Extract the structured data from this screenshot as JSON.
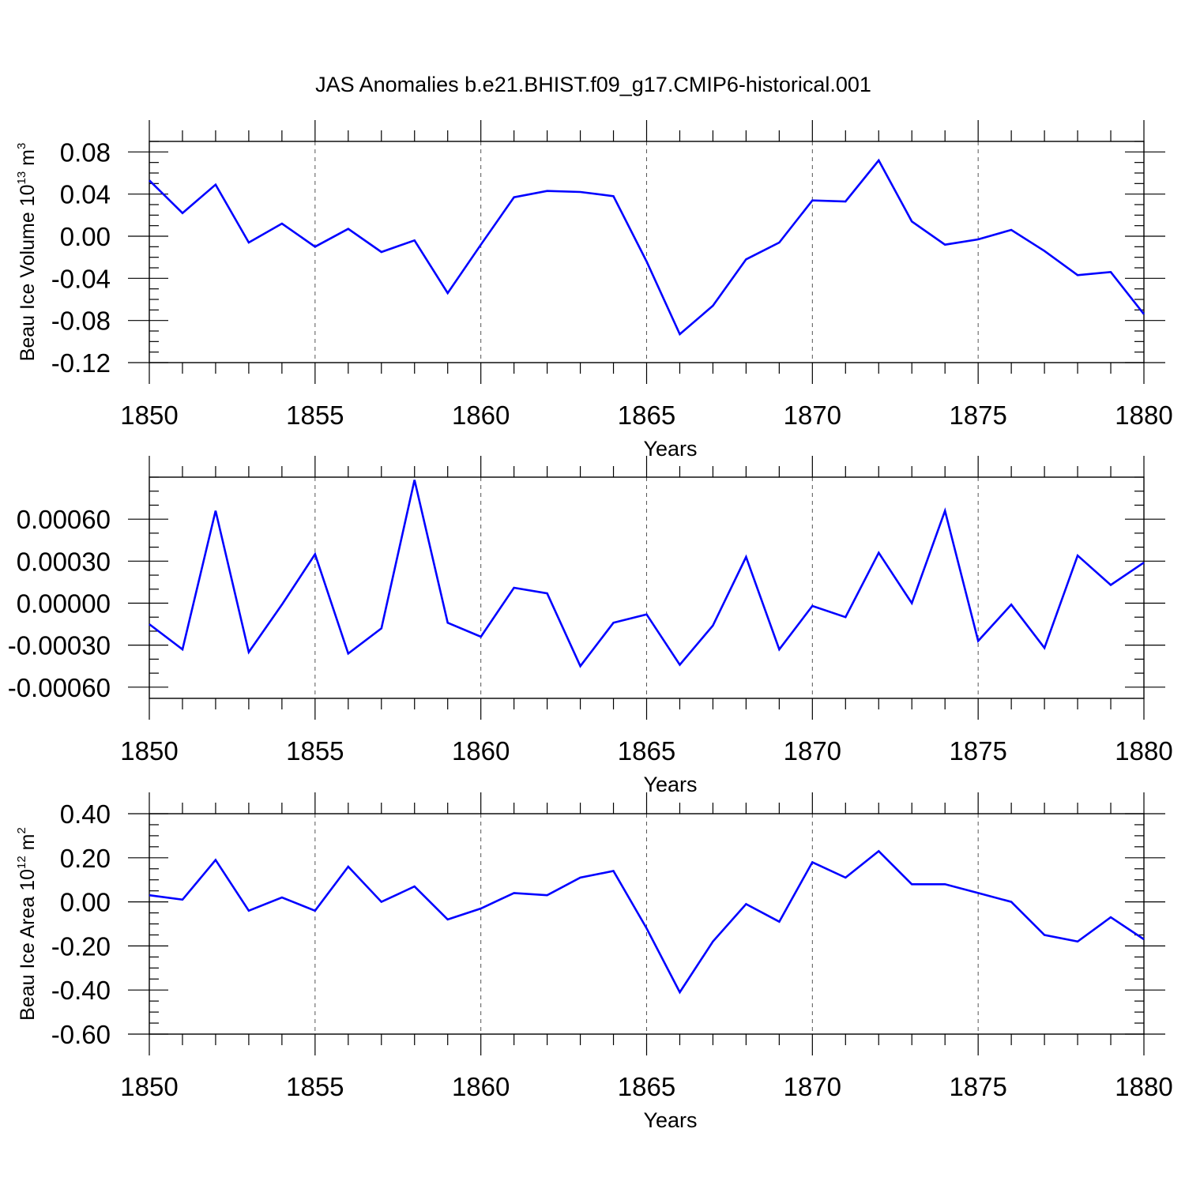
{
  "figure": {
    "title": "JAS Anomalies b.e21.BHIST.f09_g17.CMIP6-historical.001"
  },
  "chart_data": [
    {
      "type": "line",
      "title": "JAS Anomalies b.e21.BHIST.f09_g17.CMIP6-historical.001",
      "xlabel": "Years",
      "ylabel": "Beau Ice Volume 10",
      "ylabel_exp": "13",
      "ylabel_unit": " m",
      "ylabel_unit_exp": "3",
      "xlim": [
        1850,
        1880
      ],
      "ylim": [
        -0.12,
        0.09
      ],
      "xticks": [
        "1850",
        "1855",
        "1860",
        "1865",
        "1870",
        "1875",
        "1880"
      ],
      "xtick_values": [
        1850,
        1855,
        1860,
        1865,
        1870,
        1875,
        1880
      ],
      "yticks": [
        "0.08",
        "0.04",
        "0.00",
        "-0.04",
        "-0.08",
        "-0.12"
      ],
      "ytick_values": [
        0.08,
        0.04,
        0.0,
        -0.04,
        -0.08,
        -0.12
      ],
      "ytick_minor_step": 0.01,
      "xgrid": "dashed-major",
      "line_color": "#0000ff",
      "x": [
        1850,
        1851,
        1852,
        1853,
        1854,
        1855,
        1856,
        1857,
        1858,
        1859,
        1860,
        1861,
        1862,
        1863,
        1864,
        1865,
        1866,
        1867,
        1868,
        1869,
        1870,
        1871,
        1872,
        1873,
        1874,
        1875,
        1876,
        1877,
        1878,
        1879,
        1880
      ],
      "values": [
        0.053,
        0.022,
        0.049,
        -0.006,
        0.012,
        -0.01,
        0.007,
        -0.015,
        -0.004,
        -0.054,
        -0.008,
        0.037,
        0.043,
        0.042,
        0.038,
        -0.024,
        -0.093,
        -0.066,
        -0.022,
        -0.006,
        0.034,
        0.033,
        0.072,
        0.014,
        -0.008,
        -0.003,
        0.006,
        -0.014,
        -0.037,
        -0.034,
        -0.074
      ]
    },
    {
      "type": "line",
      "xlabel": "Years",
      "ylabel": "",
      "xlim": [
        1850,
        1880
      ],
      "ylim": [
        -0.00068,
        0.0009
      ],
      "xticks": [
        "1850",
        "1855",
        "1860",
        "1865",
        "1870",
        "1875",
        "1880"
      ],
      "xtick_values": [
        1850,
        1855,
        1860,
        1865,
        1870,
        1875,
        1880
      ],
      "yticks": [
        "0.00060",
        "0.00030",
        "0.00000",
        "-0.00030",
        "-0.00060"
      ],
      "ytick_values": [
        0.0006,
        0.0003,
        0.0,
        -0.0003,
        -0.0006
      ],
      "ytick_minor_step": 0.0001,
      "xgrid": "dashed-major",
      "line_color": "#0000ff",
      "x": [
        1850,
        1851,
        1852,
        1853,
        1854,
        1855,
        1856,
        1857,
        1858,
        1859,
        1860,
        1861,
        1862,
        1863,
        1864,
        1865,
        1866,
        1867,
        1868,
        1869,
        1870,
        1871,
        1872,
        1873,
        1874,
        1875,
        1876,
        1877,
        1878,
        1879,
        1880
      ],
      "values": [
        -0.00015,
        -0.00033,
        0.00066,
        -0.00035,
        -1e-05,
        0.00035,
        -0.00036,
        -0.00018,
        0.00088,
        -0.00014,
        -0.00024,
        0.00011,
        7e-05,
        -0.00045,
        -0.00014,
        -8e-05,
        -0.00044,
        -0.00016,
        0.00033,
        -0.00033,
        -2e-05,
        -0.0001,
        0.00036,
        0.0,
        0.00066,
        -0.00027,
        -1e-05,
        -0.00032,
        0.00034,
        0.00013,
        0.00029
      ]
    },
    {
      "type": "line",
      "xlabel": "Years",
      "ylabel": "Beau Ice Area 10",
      "ylabel_exp": "12",
      "ylabel_unit": " m",
      "ylabel_unit_exp": "2",
      "xlim": [
        1850,
        1880
      ],
      "ylim": [
        -0.6,
        0.4
      ],
      "xticks": [
        "1850",
        "1855",
        "1860",
        "1865",
        "1870",
        "1875",
        "1880"
      ],
      "xtick_values": [
        1850,
        1855,
        1860,
        1865,
        1870,
        1875,
        1880
      ],
      "yticks": [
        "0.40",
        "0.20",
        "0.00",
        "-0.20",
        "-0.40",
        "-0.60"
      ],
      "ytick_values": [
        0.4,
        0.2,
        0.0,
        -0.2,
        -0.4,
        -0.6
      ],
      "ytick_minor_step": 0.05,
      "xgrid": "dashed-major",
      "line_color": "#0000ff",
      "x": [
        1850,
        1851,
        1852,
        1853,
        1854,
        1855,
        1856,
        1857,
        1858,
        1859,
        1860,
        1861,
        1862,
        1863,
        1864,
        1865,
        1866,
        1867,
        1868,
        1869,
        1870,
        1871,
        1872,
        1873,
        1874,
        1875,
        1876,
        1877,
        1878,
        1879,
        1880
      ],
      "values": [
        0.03,
        0.01,
        0.19,
        -0.04,
        0.02,
        -0.04,
        0.16,
        0.0,
        0.07,
        -0.08,
        -0.03,
        0.04,
        0.03,
        0.11,
        0.14,
        -0.12,
        -0.41,
        -0.18,
        -0.01,
        -0.09,
        0.18,
        0.11,
        0.23,
        0.08,
        0.08,
        0.04,
        0.0,
        -0.15,
        -0.18,
        -0.07,
        -0.17
      ]
    }
  ]
}
